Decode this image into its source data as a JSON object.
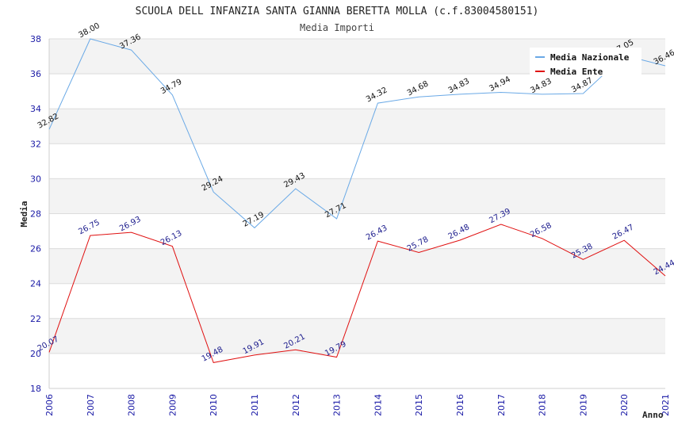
{
  "chart_data": {
    "type": "line",
    "title": "SCUOLA DELL INFANZIA SANTA GIANNA BERETTA MOLLA (c.f.83004580151)",
    "subtitle": "Media Importi",
    "xlabel": "Anno",
    "ylabel": "Media",
    "ylim": [
      18,
      38
    ],
    "yticks": [
      18,
      20,
      22,
      24,
      26,
      28,
      30,
      32,
      34,
      36,
      38
    ],
    "x": [
      "2006",
      "2007",
      "2008",
      "2009",
      "2010",
      "2011",
      "2012",
      "2013",
      "2014",
      "2015",
      "2016",
      "2017",
      "2018",
      "2019",
      "2020",
      "2021"
    ],
    "legend_position": "top-right",
    "grid": true,
    "series": [
      {
        "name": "Media Nazionale",
        "color": "#6aa9e6",
        "values": [
          32.82,
          38.0,
          37.36,
          34.79,
          29.24,
          27.19,
          29.43,
          27.71,
          34.32,
          34.68,
          34.83,
          34.94,
          34.83,
          34.87,
          37.05,
          36.46
        ]
      },
      {
        "name": "Media Ente",
        "color": "#e01010",
        "values": [
          20.07,
          26.75,
          26.93,
          26.13,
          19.48,
          19.91,
          20.21,
          19.79,
          26.43,
          25.78,
          26.48,
          27.39,
          26.58,
          25.38,
          26.47,
          24.44
        ]
      }
    ]
  }
}
